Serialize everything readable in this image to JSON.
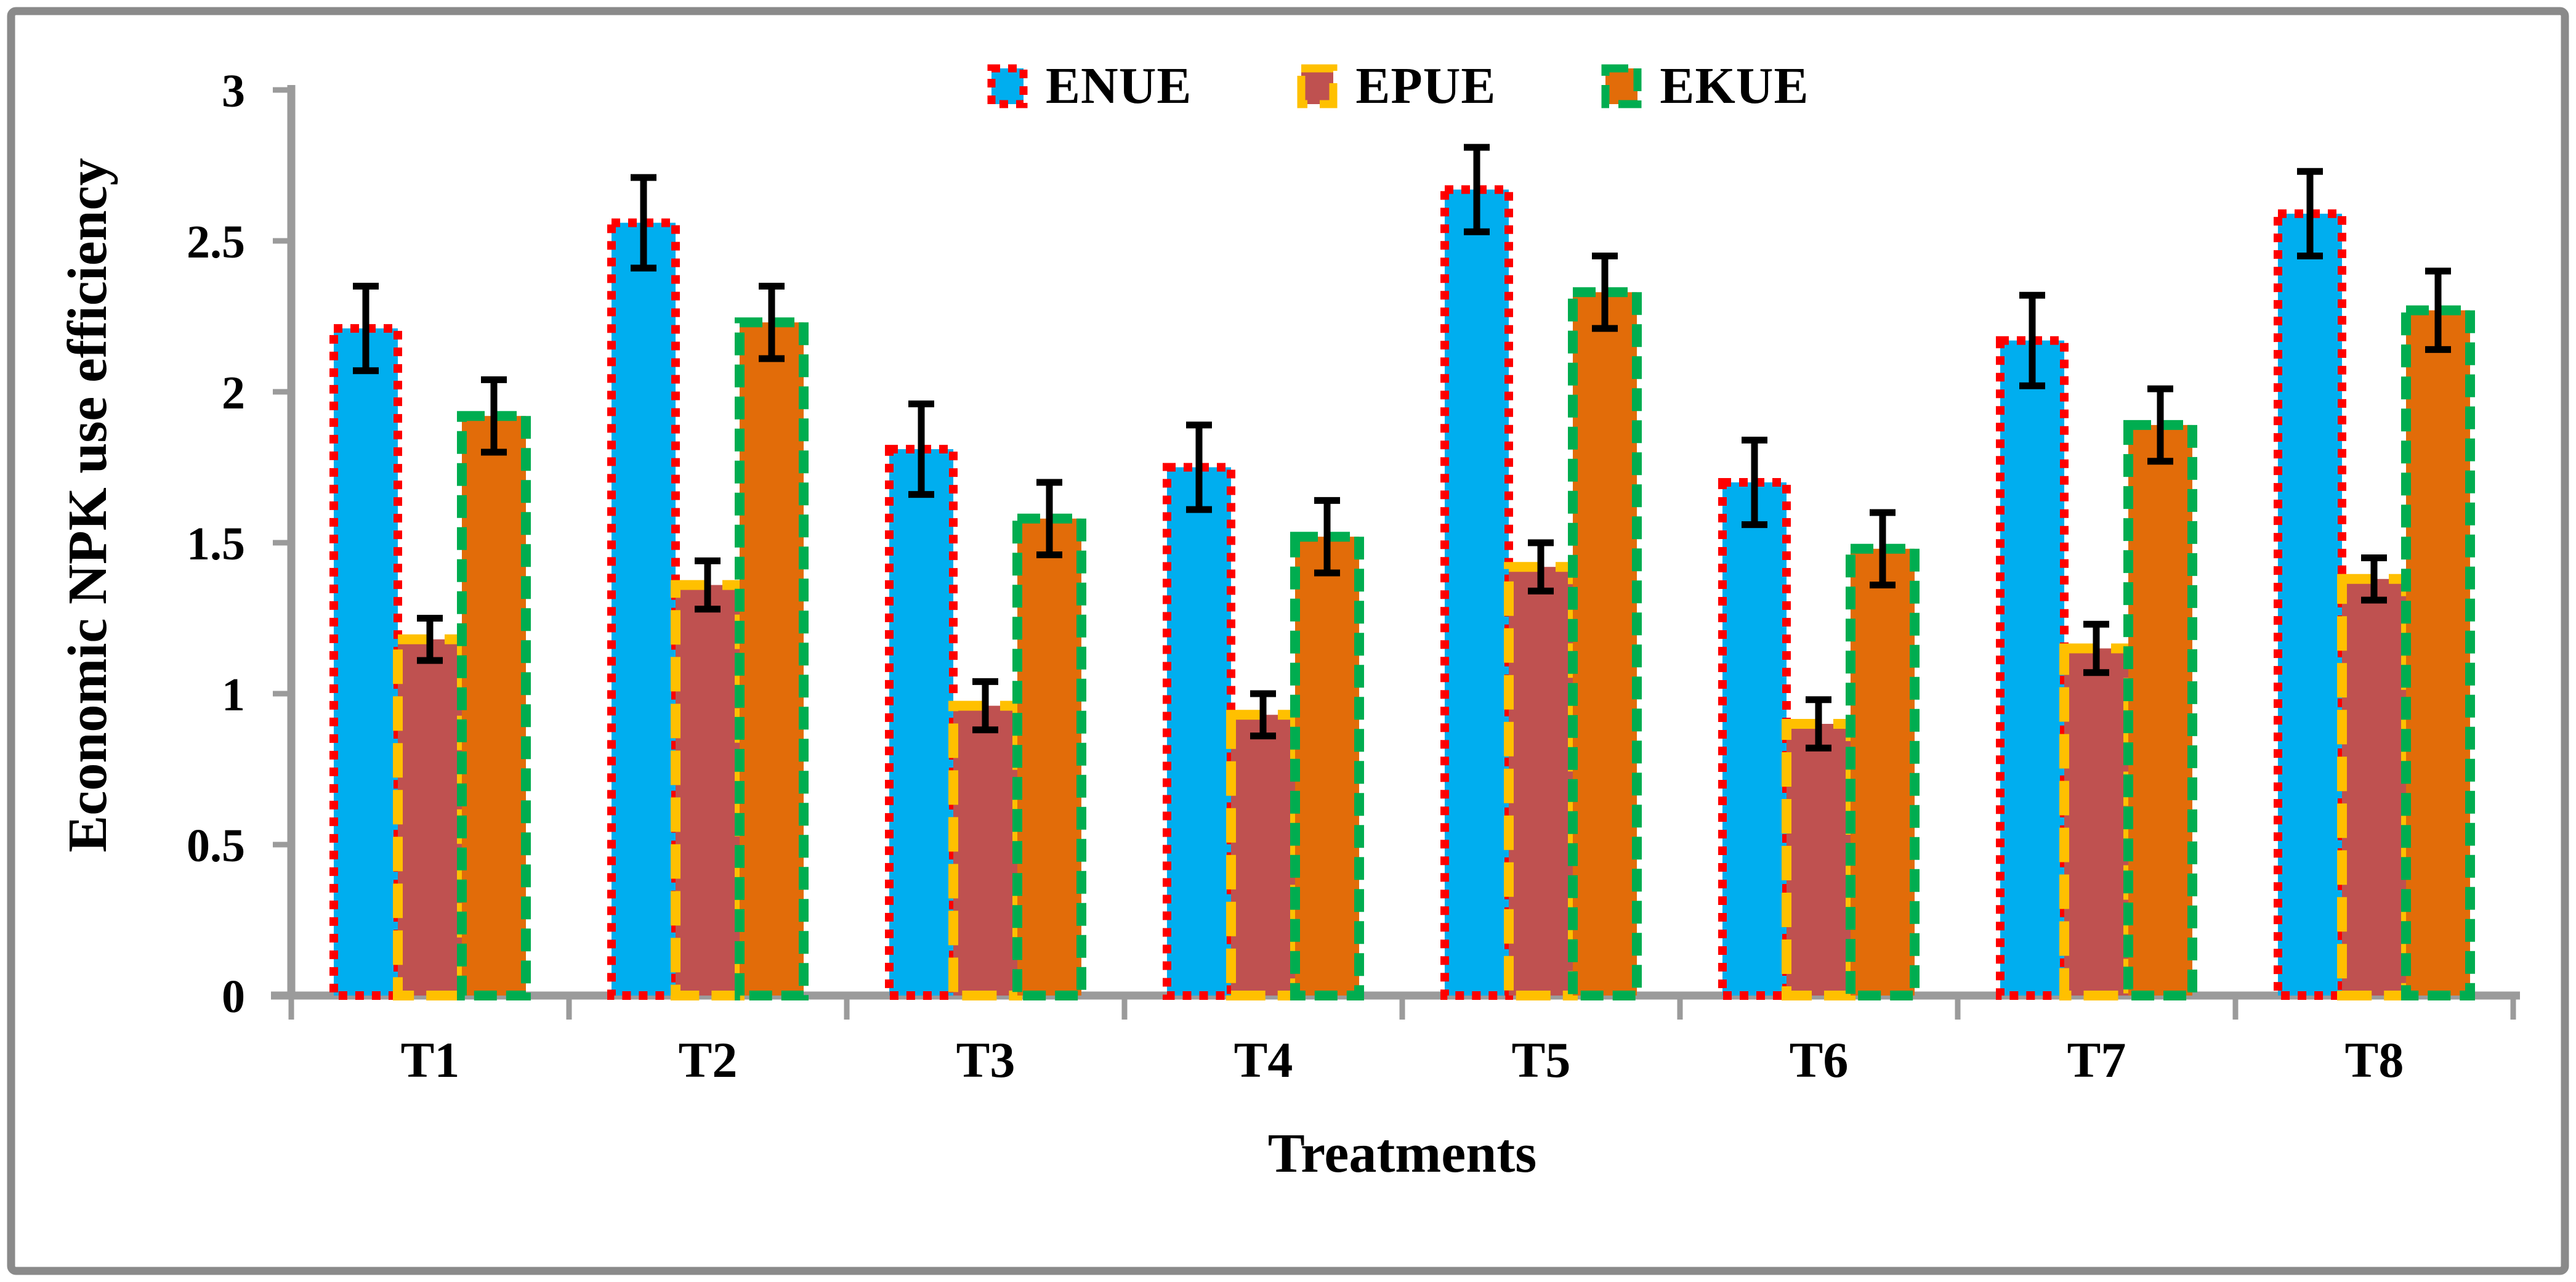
{
  "figure": {
    "background": "#ffffff",
    "border_color": "#8a8a8a"
  },
  "chart_data": {
    "type": "bar",
    "categories": [
      "T1",
      "T2",
      "T3",
      "T4",
      "T5",
      "T6",
      "T7",
      "T8"
    ],
    "xlabel": "Treatments",
    "ylabel": "Economic NPK use efficiency",
    "ylim": [
      0,
      3
    ],
    "yticks": [
      "0",
      "0.5",
      "1",
      "1.5",
      "2",
      "2.5",
      "3"
    ],
    "grid": false,
    "legend_position": "top-center",
    "error_bars": true,
    "error_bar_color": "#000000",
    "axis_color": "#9b9b9b",
    "text_color": "#000000",
    "series": [
      {
        "name": "ENUE",
        "fill": "#00AEEF",
        "border_color": "#FE0000",
        "border_style": "dotted",
        "values": [
          2.21,
          2.56,
          1.81,
          1.75,
          2.67,
          1.7,
          2.17,
          2.59
        ],
        "errors": [
          0.14,
          0.15,
          0.15,
          0.14,
          0.14,
          0.14,
          0.15,
          0.14
        ]
      },
      {
        "name": "EPUE",
        "fill": "#BF5150",
        "border_color": "#FFC000",
        "border_style": "long-dash",
        "values": [
          1.18,
          1.36,
          0.96,
          0.93,
          1.42,
          0.9,
          1.15,
          1.38
        ],
        "errors": [
          0.07,
          0.08,
          0.08,
          0.07,
          0.08,
          0.08,
          0.08,
          0.07
        ]
      },
      {
        "name": "EKUE",
        "fill": "#E26C09",
        "border_color": "#00AD50",
        "border_style": "dash",
        "values": [
          1.92,
          2.23,
          1.58,
          1.52,
          2.33,
          1.48,
          1.89,
          2.27
        ],
        "errors": [
          0.12,
          0.12,
          0.12,
          0.12,
          0.12,
          0.12,
          0.12,
          0.13
        ]
      }
    ]
  }
}
